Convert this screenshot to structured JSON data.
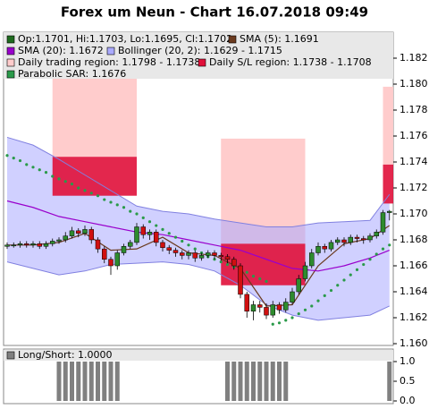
{
  "chart_data": [
    {
      "type": "candlestick",
      "title": "Forex um Neun - Chart 16.07.2018 09:49",
      "candles": {
        "name": "Op:1.1701, Hi:1.1703, Lo:1.1695, Cl:1.1702",
        "color": "#1e6b1e",
        "up_color": "#2e8b2e",
        "down_color": "#d01010",
        "open": [
          1.1675,
          1.1676,
          1.1676,
          1.1677,
          1.1676,
          1.1677,
          1.1675,
          1.1677,
          1.1679,
          1.168,
          1.1683,
          1.1687,
          1.1685,
          1.1688,
          1.168,
          1.1673,
          1.1665,
          1.166,
          1.167,
          1.1675,
          1.1678,
          1.169,
          1.1684,
          1.1686,
          1.1678,
          1.1674,
          1.1672,
          1.167,
          1.1668,
          1.167,
          1.1666,
          1.1668,
          1.167,
          1.1668,
          1.1667,
          1.1665,
          1.166,
          1.1638,
          1.1625,
          1.163,
          1.1628,
          1.1622,
          1.163,
          1.1626,
          1.1632,
          1.164,
          1.165,
          1.166,
          1.167,
          1.1675,
          1.1673,
          1.1678,
          1.168,
          1.1678,
          1.1682,
          1.1681,
          1.168,
          1.1683,
          1.1686,
          1.1701
        ],
        "high": [
          1.1678,
          1.1678,
          1.1679,
          1.1679,
          1.1679,
          1.1679,
          1.1679,
          1.1681,
          1.1682,
          1.1686,
          1.169,
          1.1689,
          1.1691,
          1.169,
          1.1682,
          1.1675,
          1.1667,
          1.1672,
          1.1677,
          1.168,
          1.1693,
          1.1692,
          1.1688,
          1.1688,
          1.168,
          1.1676,
          1.1674,
          1.1672,
          1.1672,
          1.1672,
          1.167,
          1.1672,
          1.1672,
          1.167,
          1.1669,
          1.1667,
          1.1662,
          1.164,
          1.1633,
          1.1633,
          1.1631,
          1.1633,
          1.1632,
          1.1635,
          1.1643,
          1.1653,
          1.1663,
          1.1673,
          1.1678,
          1.1677,
          1.168,
          1.1682,
          1.1682,
          1.1684,
          1.1684,
          1.1683,
          1.1685,
          1.1688,
          1.1703,
          1.1703
        ],
        "low": [
          1.1673,
          1.1674,
          1.1674,
          1.1674,
          1.1674,
          1.1673,
          1.1673,
          1.1675,
          1.1677,
          1.1678,
          1.1681,
          1.1682,
          1.1683,
          1.1677,
          1.167,
          1.1662,
          1.1653,
          1.1657,
          1.1668,
          1.1673,
          1.1676,
          1.1681,
          1.168,
          1.1675,
          1.1671,
          1.1669,
          1.1667,
          1.1665,
          1.1665,
          1.1663,
          1.1664,
          1.1666,
          1.1665,
          1.1664,
          1.1662,
          1.1657,
          1.1635,
          1.162,
          1.1618,
          1.1624,
          1.1619,
          1.162,
          1.1623,
          1.1624,
          1.163,
          1.1638,
          1.1648,
          1.1658,
          1.1668,
          1.167,
          1.1671,
          1.1676,
          1.1675,
          1.1676,
          1.1678,
          1.1677,
          1.1678,
          1.1681,
          1.1684,
          1.1695
        ],
        "close": [
          1.1676,
          1.1676,
          1.1677,
          1.1676,
          1.1677,
          1.1675,
          1.1677,
          1.1679,
          1.168,
          1.1683,
          1.1687,
          1.1685,
          1.1688,
          1.168,
          1.1673,
          1.1665,
          1.166,
          1.167,
          1.1675,
          1.1678,
          1.169,
          1.1684,
          1.1686,
          1.1678,
          1.1674,
          1.1672,
          1.167,
          1.1668,
          1.167,
          1.1666,
          1.1668,
          1.167,
          1.1668,
          1.1667,
          1.1665,
          1.166,
          1.1638,
          1.1625,
          1.163,
          1.1628,
          1.1622,
          1.163,
          1.1626,
          1.1632,
          1.164,
          1.165,
          1.166,
          1.167,
          1.1675,
          1.1673,
          1.1678,
          1.168,
          1.1678,
          1.1682,
          1.1681,
          1.168,
          1.1683,
          1.1686,
          1.1701,
          1.1702
        ]
      },
      "series": [
        {
          "name": "SMA (5): 1.1691",
          "color": "#6b3a1e",
          "x": [
            0,
            4,
            8,
            12,
            16,
            20,
            24,
            28,
            32,
            36,
            40,
            44,
            48,
            52,
            56,
            59
          ],
          "values": [
            1.1676,
            1.1676,
            1.1678,
            1.1685,
            1.1672,
            1.1673,
            1.1682,
            1.167,
            1.1668,
            1.1658,
            1.1629,
            1.163,
            1.166,
            1.1677,
            1.1681,
            1.1691
          ]
        },
        {
          "name": "SMA (20): 1.1672",
          "color": "#9900cc",
          "x": [
            0,
            4,
            8,
            12,
            16,
            20,
            24,
            28,
            32,
            36,
            40,
            44,
            48,
            52,
            56,
            59
          ],
          "values": [
            1.171,
            1.1705,
            1.1698,
            1.1694,
            1.169,
            1.1686,
            1.1684,
            1.168,
            1.1676,
            1.1672,
            1.1665,
            1.1658,
            1.1656,
            1.166,
            1.1666,
            1.1672
          ]
        }
      ],
      "bollinger": {
        "name": "Bollinger (20, 2): 1.1629 - 1.1715",
        "color": "#aaaaff",
        "line_color": "#8080e0",
        "x": [
          0,
          4,
          8,
          12,
          16,
          20,
          24,
          28,
          32,
          36,
          40,
          44,
          48,
          52,
          56,
          59
        ],
        "upper": [
          1.1759,
          1.1753,
          1.1742,
          1.173,
          1.1718,
          1.1706,
          1.1702,
          1.17,
          1.1696,
          1.1693,
          1.169,
          1.169,
          1.1693,
          1.1694,
          1.1695,
          1.1715
        ],
        "lower": [
          1.1663,
          1.1658,
          1.1653,
          1.1656,
          1.1661,
          1.1662,
          1.1663,
          1.1661,
          1.1656,
          1.1645,
          1.163,
          1.1622,
          1.1618,
          1.162,
          1.1622,
          1.1629
        ]
      },
      "regions": {
        "trading_name": "Daily trading region: 1.1798 - 1.1738",
        "trading_color": "#ffcccc",
        "sl_name": "Daily S/L region: 1.1738 - 1.1708",
        "sl_color": "#e0103a",
        "items": [
          {
            "x": [
              7,
              20
            ],
            "trading": [
              1.1744,
              1.181
            ],
            "sl": [
              1.1714,
              1.1744
            ]
          },
          {
            "x": [
              33,
              46
            ],
            "trading": [
              1.1677,
              1.1758
            ],
            "sl": [
              1.1645,
              1.1677
            ]
          },
          {
            "x": [
              58,
              59.6
            ],
            "trading": [
              1.1738,
              1.1798
            ],
            "sl": [
              1.1708,
              1.1738
            ]
          }
        ]
      },
      "sar": {
        "name": "Parabolic SAR: 1.1676",
        "color": "#2a9a4a",
        "values": [
          1.1745,
          1.1743,
          1.1741,
          1.1738,
          1.1736,
          1.1734,
          1.1732,
          1.1729,
          1.1727,
          1.1725,
          1.1723,
          1.172,
          1.1718,
          1.1716,
          1.1714,
          1.1711,
          1.1709,
          1.1707,
          1.1705,
          1.1702,
          1.17,
          1.1697,
          1.1694,
          1.1691,
          1.1688,
          1.1685,
          1.1682,
          1.1679,
          1.1676,
          1.1673,
          1.167,
          1.1667,
          1.1665,
          1.1663,
          1.1661,
          1.1659,
          1.1657,
          1.1655,
          1.1652,
          1.165,
          1.1648,
          1.1615,
          1.1616,
          1.1618,
          1.162,
          1.1623,
          1.1626,
          1.1629,
          1.1633,
          1.1637,
          1.1641,
          1.1645,
          1.1649,
          1.1653,
          1.1657,
          1.1661,
          1.1665,
          1.1669,
          1.1673,
          1.1676
        ]
      },
      "ylim": [
        1.16,
        1.184
      ],
      "yticks": [
        {
          "value": 1.16,
          "label": "1.160"
        },
        1.162,
        1.164,
        1.166,
        1.168,
        {
          "value": 1.17,
          "label": "1.170"
        },
        1.172,
        1.174,
        1.176,
        1.178,
        {
          "value": 1.18,
          "label": "1.180"
        },
        1.182
      ]
    },
    {
      "type": "bar",
      "name": "Long/Short: 1.0000",
      "color": "#808080",
      "values": [
        0,
        0,
        0,
        0,
        0,
        0,
        0,
        0,
        1,
        1,
        1,
        1,
        1,
        1,
        1,
        1,
        1,
        1,
        0,
        0,
        0,
        0,
        0,
        0,
        0,
        0,
        0,
        0,
        0,
        0,
        0,
        0,
        0,
        0,
        1,
        1,
        1,
        1,
        1,
        1,
        1,
        1,
        1,
        1,
        0,
        0,
        0,
        0,
        0,
        0,
        0,
        0,
        0,
        0,
        0,
        0,
        0,
        0,
        0,
        1
      ],
      "ylim": [
        0,
        1
      ],
      "yticks": [
        {
          "value": 0,
          "label": "0.0"
        },
        0.5,
        {
          "value": 1,
          "label": "1.0"
        }
      ]
    }
  ]
}
